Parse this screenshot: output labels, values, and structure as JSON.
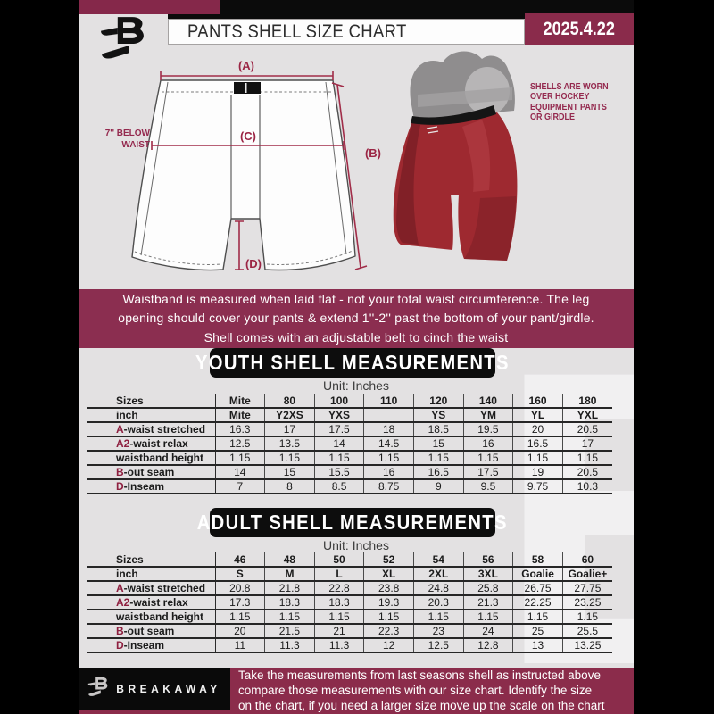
{
  "colors": {
    "maroon": "#8a2b4b",
    "notice_maroon": "#8b2e50",
    "accent": "#8e2040",
    "page_gray": "#e3e1e2",
    "band_black": "#0b0b0b",
    "shell_red": "#9e2930",
    "measure_line": "#a12d49"
  },
  "header": {
    "title": "PANTS SHELL SIZE CHART",
    "date": "2025.4.22"
  },
  "diagram": {
    "label_a": "(A)",
    "label_b": "(B)",
    "label_c": "(C)",
    "label_d": "(D)",
    "waist_note": "7'' BELOW\nWAIST",
    "caption": "SHELLS ARE WORN\nOVER HOCKEY\nEQUIPMENT PANTS\nOR GIRDLE"
  },
  "notice": "Waistband is measured when laid flat - not your total waist circumference. The leg\nopening should cover your pants & extend 1''-2'' past the bottom of your pant/girdle.\nShell comes with an adjustable belt to cinch the waist",
  "youth": {
    "heading": "YOUTH SHELL MEASUREMENTS",
    "unit_label": "Unit: Inches",
    "rows": [
      {
        "prefix": "",
        "label": "Sizes",
        "header": true,
        "values": [
          "Mite",
          "80",
          "100",
          "110",
          "120",
          "140",
          "160",
          "180"
        ]
      },
      {
        "prefix": "",
        "label": "inch",
        "header": true,
        "values": [
          "Mite",
          "Y2XS",
          "YXS",
          "",
          "YS",
          "YM",
          "YL",
          "YXL"
        ]
      },
      {
        "prefix": "A",
        "label": "-waist stretched",
        "header": false,
        "values": [
          "16.3",
          "17",
          "17.5",
          "18",
          "18.5",
          "19.5",
          "20",
          "20.5"
        ]
      },
      {
        "prefix": "A2",
        "label": "-waist relax",
        "header": false,
        "values": [
          "12.5",
          "13.5",
          "14",
          "14.5",
          "15",
          "16",
          "16.5",
          "17"
        ]
      },
      {
        "prefix": "",
        "label": "waistband height",
        "header": false,
        "values": [
          "1.15",
          "1.15",
          "1.15",
          "1.15",
          "1.15",
          "1.15",
          "1.15",
          "1.15"
        ]
      },
      {
        "prefix": "B",
        "label": "-out seam",
        "header": false,
        "values": [
          "14",
          "15",
          "15.5",
          "16",
          "16.5",
          "17.5",
          "19",
          "20.5"
        ]
      },
      {
        "prefix": "D",
        "label": "-Inseam",
        "header": false,
        "values": [
          "7",
          "8",
          "8.5",
          "8.75",
          "9",
          "9.5",
          "9.75",
          "10.3"
        ]
      }
    ]
  },
  "adult": {
    "heading": "ADULT SHELL MEASUREMENTS",
    "unit_label": "Unit: Inches",
    "rows": [
      {
        "prefix": "",
        "label": "Sizes",
        "header": true,
        "values": [
          "46",
          "48",
          "50",
          "52",
          "54",
          "56",
          "58",
          "60"
        ]
      },
      {
        "prefix": "",
        "label": "inch",
        "header": true,
        "values": [
          "S",
          "M",
          "L",
          "XL",
          "2XL",
          "3XL",
          "Goalie",
          "Goalie+"
        ]
      },
      {
        "prefix": "A",
        "label": "-waist stretched",
        "header": false,
        "values": [
          "20.8",
          "21.8",
          "22.8",
          "23.8",
          "24.8",
          "25.8",
          "26.75",
          "27.75"
        ]
      },
      {
        "prefix": "A2",
        "label": "-waist relax",
        "header": false,
        "values": [
          "17.3",
          "18.3",
          "18.3",
          "19.3",
          "20.3",
          "21.3",
          "22.25",
          "23.25"
        ]
      },
      {
        "prefix": "",
        "label": "waistband height",
        "header": false,
        "values": [
          "1.15",
          "1.15",
          "1.15",
          "1.15",
          "1.15",
          "1.15",
          "1.15",
          "1.15"
        ]
      },
      {
        "prefix": "B",
        "label": "-out seam",
        "header": false,
        "values": [
          "20",
          "21.5",
          "21",
          "22.3",
          "23",
          "24",
          "25",
          "25.5"
        ]
      },
      {
        "prefix": "D",
        "label": "-Inseam",
        "header": false,
        "values": [
          "11",
          "11.3",
          "11.3",
          "12",
          "12.5",
          "12.8",
          "13",
          "13.25"
        ]
      }
    ]
  },
  "footer": {
    "brand": "BREAKAWAY",
    "text": "Take the measurements from last seasons shell as instructed above\ncompare those measurements  with our size chart. Identify the size\non the chart, if you need a larger size move up the scale on the chart"
  },
  "watermark_glyph": "B"
}
